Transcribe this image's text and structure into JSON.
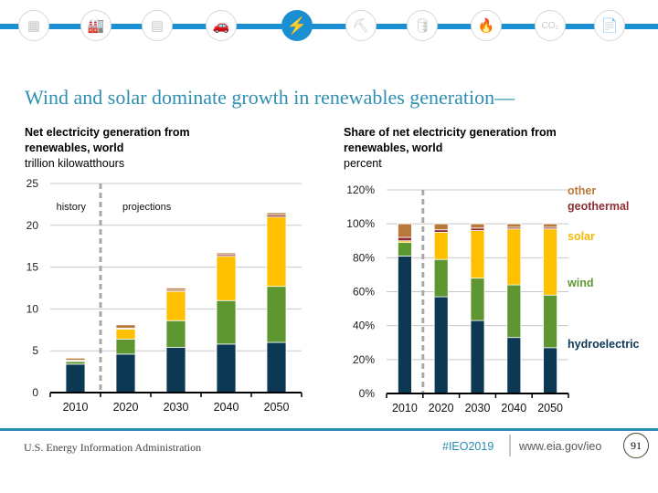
{
  "nav": {
    "icons": [
      {
        "name": "overview-icon",
        "glyph": "▦",
        "active": false
      },
      {
        "name": "industrial-icon",
        "glyph": "🏭",
        "active": false
      },
      {
        "name": "buildings-icon",
        "glyph": "▤",
        "active": false
      },
      {
        "name": "transportation-icon",
        "glyph": "🚗",
        "active": false
      },
      {
        "name": "electricity-icon",
        "glyph": "⚡",
        "active": true
      },
      {
        "name": "coal-icon",
        "glyph": "⛏",
        "active": false
      },
      {
        "name": "petroleum-icon",
        "glyph": "🛢",
        "active": false
      },
      {
        "name": "natural-gas-icon",
        "glyph": "🔥",
        "active": false
      },
      {
        "name": "co2-icon",
        "glyph": "CO₂",
        "active": false
      },
      {
        "name": "document-icon",
        "glyph": "📄",
        "active": false
      }
    ]
  },
  "title": "Wind and solar dominate growth in renewables generation—",
  "footer": {
    "agency": "U.S. Energy Information Administration",
    "hashtag": "#IEO2019",
    "url": "www.eia.gov/ieo",
    "page": "91"
  },
  "colors": {
    "hydroelectric": "#0c3853",
    "wind": "#5e9732",
    "solar": "#ffc000",
    "geothermal": "#8b2f35",
    "other": "#b8793a"
  },
  "chart_data": [
    {
      "type": "bar",
      "stacked": true,
      "title_bold": "Net electricity generation from renewables, world",
      "units": "trillion kilowatthours",
      "categories": [
        "2010",
        "2020",
        "2030",
        "2040",
        "2050"
      ],
      "ylim": [
        0,
        25
      ],
      "yticks": [
        "0",
        "5",
        "10",
        "15",
        "20",
        "25"
      ],
      "ytick_values": [
        0,
        5,
        10,
        15,
        20,
        25
      ],
      "grid": true,
      "annotations": {
        "history": "history",
        "projections": "projections",
        "divider_between": [
          "2010",
          "2020"
        ]
      },
      "series": [
        {
          "name": "hydroelectric",
          "values": [
            3.4,
            4.6,
            5.4,
            5.8,
            6.0
          ]
        },
        {
          "name": "wind",
          "values": [
            0.35,
            1.8,
            3.2,
            5.2,
            6.7
          ]
        },
        {
          "name": "solar",
          "values": [
            0.05,
            1.2,
            3.5,
            5.3,
            8.3
          ]
        },
        {
          "name": "geothermal",
          "values": [
            0.07,
            0.1,
            0.15,
            0.2,
            0.25
          ]
        },
        {
          "name": "other",
          "values": [
            0.25,
            0.4,
            0.25,
            0.2,
            0.25
          ]
        }
      ]
    },
    {
      "type": "bar",
      "stacked": true,
      "title_bold": "Share of net electricity generation from renewables, world",
      "units": "percent",
      "categories": [
        "2010",
        "2020",
        "2030",
        "2040",
        "2050"
      ],
      "ylim": [
        0,
        120
      ],
      "yticks": [
        "0%",
        "20%",
        "40%",
        "60%",
        "80%",
        "100%",
        "120%"
      ],
      "ytick_values": [
        0,
        20,
        40,
        60,
        80,
        100,
        120
      ],
      "grid": true,
      "legend": [
        "other",
        "geothermal",
        "solar",
        "wind",
        "hydroelectric"
      ],
      "legend_position": "right",
      "series": [
        {
          "name": "hydroelectric",
          "values": [
            81,
            57,
            43,
            33,
            27
          ]
        },
        {
          "name": "wind",
          "values": [
            8,
            22,
            25,
            31,
            31
          ]
        },
        {
          "name": "solar",
          "values": [
            1,
            16,
            28,
            33,
            39
          ]
        },
        {
          "name": "geothermal",
          "values": [
            2,
            1.5,
            1.5,
            1,
            1
          ]
        },
        {
          "name": "other",
          "values": [
            8,
            3.5,
            2.5,
            2,
            2
          ]
        }
      ]
    }
  ]
}
